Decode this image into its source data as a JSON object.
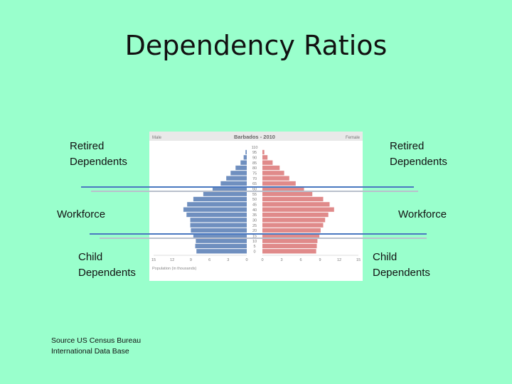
{
  "slide": {
    "title": "Dependency Ratios",
    "background": "#99ffcc",
    "left_labels": {
      "retired_1": "Retired",
      "retired_2": "Dependents",
      "workforce": "Workforce",
      "child_1": "Child",
      "child_2": "Dependents"
    },
    "right_labels": {
      "retired_1": "Retired",
      "retired_2": "Dependents",
      "workforce": "Workforce",
      "child_1": "Child",
      "child_2": "Dependents"
    },
    "source_1": "Source US Census Bureau",
    "source_2": "International Data Base",
    "line_colors": {
      "dark": "#4a78c0",
      "light": "#b9c0cc"
    }
  },
  "chart_data": {
    "type": "bar",
    "orientation": "horizontal-pyramid",
    "title": "Barbados - 2010",
    "left_header": "Male",
    "right_header": "Female",
    "xlabel": "Population (in thousands)",
    "xlim": [
      0,
      15
    ],
    "x_ticks_left": [
      "15",
      "12",
      "9",
      "6",
      "3",
      "0"
    ],
    "x_ticks_right": [
      "0",
      "3",
      "6",
      "9",
      "12",
      "15"
    ],
    "categories": [
      "110",
      "95",
      "90",
      "85",
      "80",
      "75",
      "70",
      "65",
      "60",
      "55",
      "50",
      "45",
      "40",
      "35",
      "30",
      "25",
      "20",
      "15",
      "10",
      "5",
      "0"
    ],
    "series": [
      {
        "name": "Male",
        "color": "#6f8fbf",
        "values": [
          0,
          0.2,
          0.5,
          1.0,
          1.8,
          2.6,
          3.3,
          4.2,
          5.5,
          7.0,
          8.6,
          9.6,
          10.2,
          9.7,
          9.1,
          9.1,
          9.0,
          8.6,
          8.2,
          8.3,
          8.1
        ]
      },
      {
        "name": "Female",
        "color": "#e08a8a",
        "values": [
          0,
          0.3,
          0.8,
          1.6,
          2.7,
          3.4,
          4.2,
          5.2,
          6.5,
          7.8,
          9.5,
          10.5,
          11.2,
          10.3,
          9.8,
          9.5,
          9.1,
          8.9,
          8.6,
          8.5,
          8.4
        ]
      }
    ]
  }
}
